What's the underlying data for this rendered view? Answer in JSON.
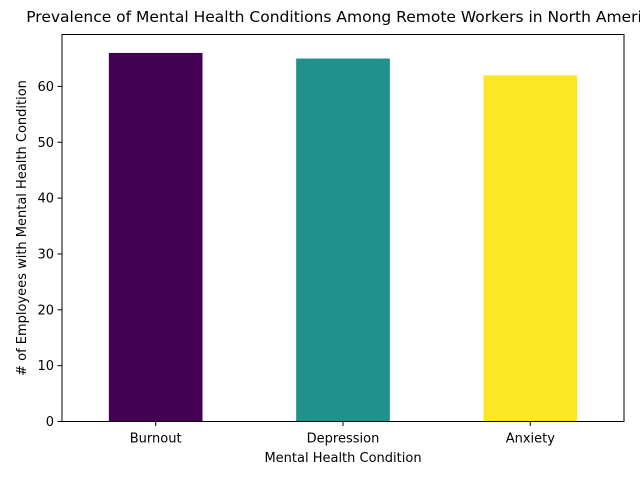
{
  "chart_data": {
    "type": "bar",
    "title": "Prevalence of Mental Health Conditions Among Remote Workers in North America",
    "xlabel": "Mental Health Condition",
    "ylabel": "# of Employees with Mental Health Condition",
    "categories": [
      "Burnout",
      "Depression",
      "Anxiety"
    ],
    "values": [
      66,
      65,
      62
    ],
    "colors": [
      "#440154",
      "#21918c",
      "#fde725"
    ],
    "ylim": [
      0,
      69.3
    ],
    "yticks": [
      0,
      10,
      20,
      30,
      40,
      50,
      60
    ],
    "ytick_labels": [
      "0",
      "10",
      "20",
      "30",
      "40",
      "50",
      "60"
    ],
    "grid": false,
    "legend": false
  }
}
